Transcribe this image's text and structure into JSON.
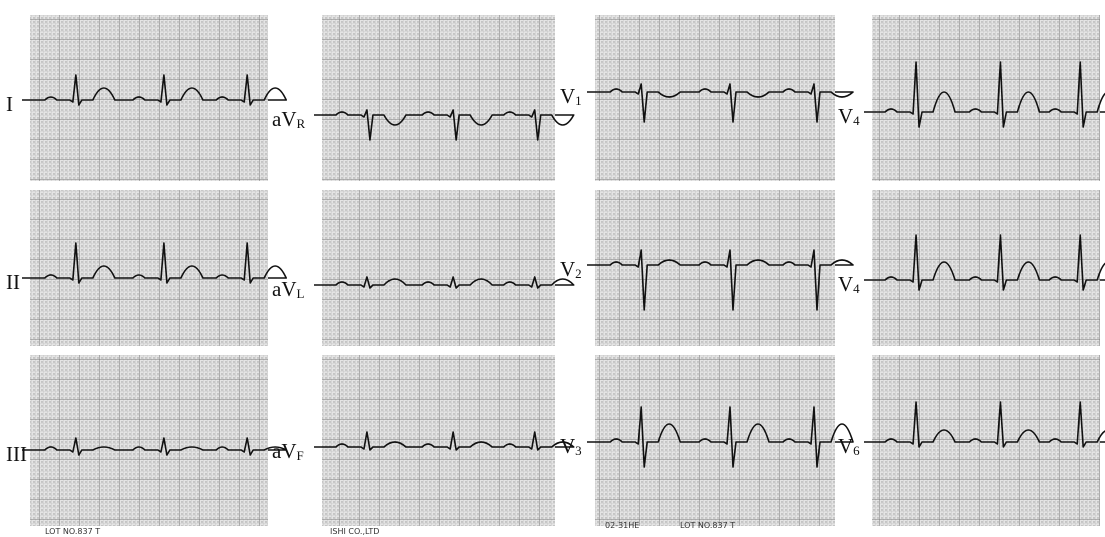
{
  "leads": [
    {
      "main": "I"
    },
    {
      "main": "II"
    },
    {
      "main": "III"
    },
    {
      "main": "aV",
      "sub": "R"
    },
    {
      "main": "aV",
      "sub": "L"
    },
    {
      "main": "aV",
      "sub": "F"
    },
    {
      "main": "V",
      "sub": "1"
    },
    {
      "main": "V",
      "sub": "2"
    },
    {
      "main": "V",
      "sub": "3"
    },
    {
      "main": "V",
      "sub": "4"
    },
    {
      "main": "V",
      "sub": "4"
    },
    {
      "main": "V",
      "sub": "6"
    }
  ],
  "footer": [
    "LOT NO.837 T",
    "ISHI CO.,LTD",
    "02-31HE",
    "LOT NO.837 T"
  ]
}
